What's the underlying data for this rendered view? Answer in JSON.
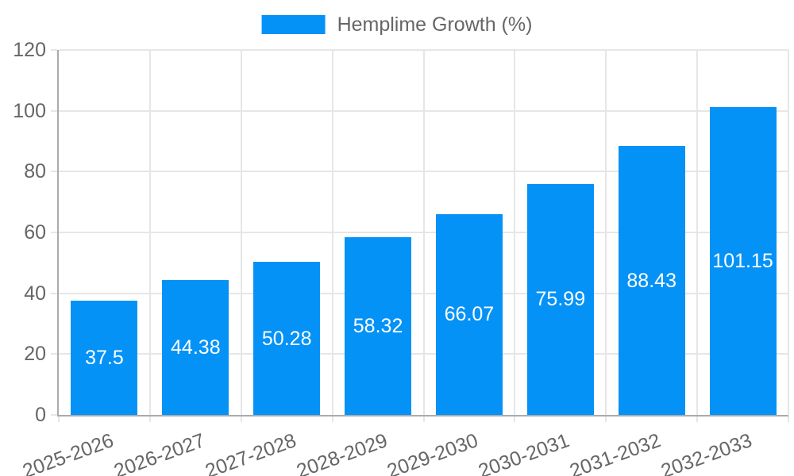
{
  "chart_data": {
    "type": "bar",
    "title": "",
    "legend": {
      "label": "Hemplime Growth (%)",
      "position": "top"
    },
    "categories": [
      "2025-2026",
      "2026-2027",
      "2027-2028",
      "2028-2029",
      "2029-2030",
      "2030-2031",
      "2031-2032",
      "2032-2033"
    ],
    "values": [
      37.5,
      44.38,
      50.28,
      58.32,
      66.07,
      75.99,
      88.43,
      101.15
    ],
    "value_labels": [
      "37.5",
      "44.38",
      "50.28",
      "58.32",
      "66.07",
      "75.99",
      "88.43",
      "101.15"
    ],
    "xlabel": "",
    "ylabel": "",
    "ylim": [
      0,
      120
    ],
    "ytick_step": 20,
    "ytick_labels": [
      "0",
      "20",
      "40",
      "60",
      "80",
      "100",
      "120"
    ],
    "grid": true,
    "colors": {
      "bar": "#0492f7",
      "axis_text": "#666666",
      "grid_line": "#e6e6e6",
      "axis_line": "#ababab",
      "bar_label": "#ffffff",
      "background": "#ffffff"
    }
  }
}
